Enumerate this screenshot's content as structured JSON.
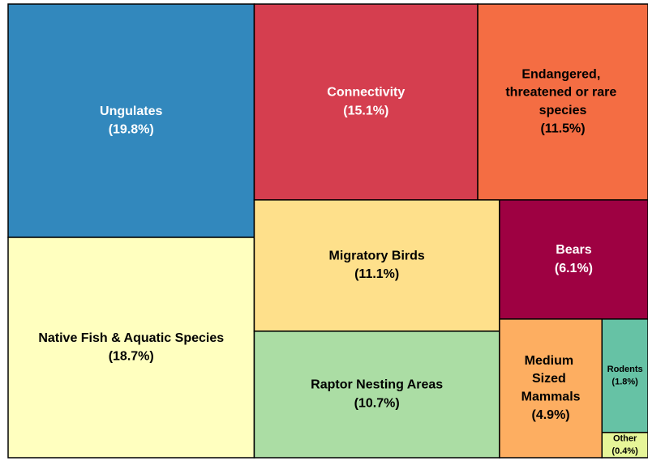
{
  "chart_data": {
    "type": "treemap",
    "categories": [
      "Ungulates",
      "Native Fish & Aquatic Species",
      "Connectivity",
      "Endangered, threatened or rare species",
      "Migratory Birds",
      "Raptor Nesting Areas",
      "Bears",
      "Medium Sized Mammals",
      "Rodents",
      "Other"
    ],
    "values": [
      19.8,
      18.7,
      15.1,
      11.5,
      11.1,
      10.7,
      6.1,
      4.9,
      1.8,
      0.4
    ],
    "value_labels": [
      "(19.8%)",
      "(18.7%)",
      "(15.1%)",
      "(11.5%)",
      "(11.1%)",
      "(10.7%)",
      "(6.1%)",
      "(4.9%)",
      "(1.8%)",
      "(0.4%)"
    ],
    "colors": [
      "#3288bd",
      "#ffffbf",
      "#d53e4f",
      "#f46d43",
      "#fee08b",
      "#abdda4",
      "#9e0142",
      "#fdae61",
      "#66c2a5",
      "#e6f598"
    ]
  }
}
